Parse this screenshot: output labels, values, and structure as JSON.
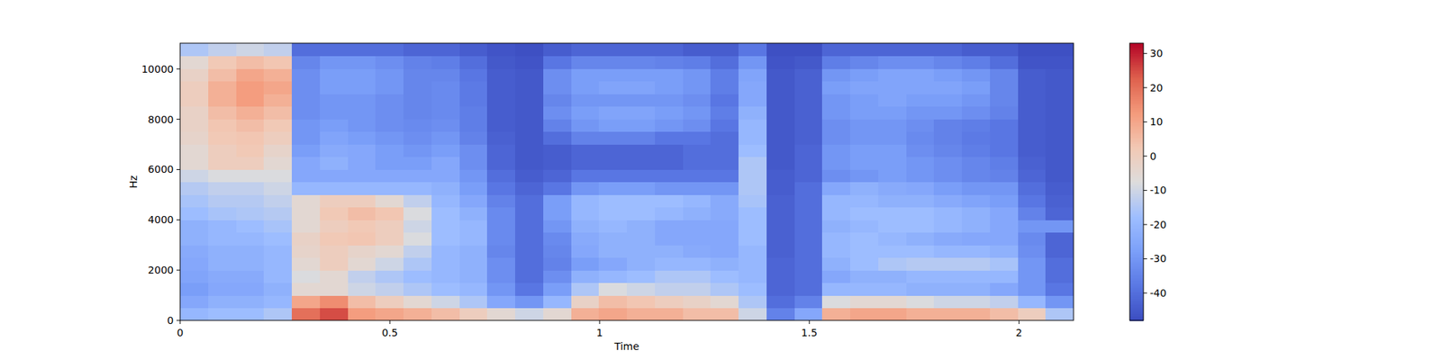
{
  "chart_data": {
    "type": "heatmap",
    "x_label": "Time",
    "y_label": "Hz",
    "xlim": [
      0,
      2.13
    ],
    "xticks": [
      0,
      0.5,
      1,
      1.5,
      2
    ],
    "ylim": [
      0,
      11025
    ],
    "yticks": [
      0,
      2000,
      4000,
      6000,
      8000,
      10000
    ],
    "colorbar_range": [
      -48,
      33
    ],
    "colorbar_ticks": [
      -40,
      -30,
      -20,
      -10,
      0,
      10,
      20,
      30
    ],
    "cells": [
      [
        -20,
        -18,
        -18,
        -15,
        20,
        25,
        12,
        10,
        8,
        5,
        0,
        -5,
        -10,
        -5,
        8,
        10,
        8,
        8,
        5,
        5,
        -10,
        -35,
        -25,
        8,
        10,
        10,
        8,
        8,
        8,
        5,
        0,
        -15
      ],
      [
        -25,
        -22,
        -22,
        -20,
        10,
        15,
        5,
        0,
        -5,
        -10,
        -15,
        -25,
        -30,
        -20,
        -2,
        5,
        3,
        0,
        -2,
        -5,
        -15,
        -40,
        -35,
        -8,
        -5,
        -5,
        -8,
        -10,
        -10,
        -12,
        -20,
        -30
      ],
      [
        -28,
        -25,
        -25,
        -22,
        -5,
        -5,
        -10,
        -12,
        -15,
        -18,
        -20,
        -30,
        -38,
        -28,
        -15,
        -8,
        -10,
        -12,
        -12,
        -15,
        -18,
        -42,
        -40,
        -20,
        -20,
        -20,
        -22,
        -22,
        -22,
        -25,
        -30,
        -38
      ],
      [
        -26,
        -24,
        -24,
        -20,
        -8,
        -5,
        -12,
        -15,
        -18,
        -20,
        -22,
        -32,
        -40,
        -32,
        -22,
        -20,
        -18,
        -15,
        -15,
        -18,
        -20,
        -42,
        -40,
        -25,
        -22,
        -22,
        -20,
        -20,
        -20,
        -20,
        -30,
        -40
      ],
      [
        -25,
        -22,
        -22,
        -20,
        -5,
        0,
        -5,
        -10,
        -15,
        -20,
        -22,
        -32,
        -40,
        -35,
        -28,
        -25,
        -22,
        -20,
        -20,
        -22,
        -20,
        -42,
        -40,
        -22,
        -18,
        -15,
        -14,
        -14,
        -14,
        -16,
        -30,
        -40
      ],
      [
        -24,
        -22,
        -22,
        -20,
        -3,
        0,
        -3,
        -5,
        -12,
        -20,
        -22,
        -34,
        -40,
        -34,
        -25,
        -22,
        -22,
        -22,
        -24,
        -25,
        -20,
        -43,
        -40,
        -20,
        -18,
        -18,
        -18,
        -20,
        -20,
        -22,
        -32,
        -42
      ],
      [
        -22,
        -20,
        -20,
        -18,
        -2,
        2,
        3,
        0,
        -8,
        -18,
        -20,
        -33,
        -40,
        -33,
        -24,
        -22,
        -22,
        -25,
        -25,
        -25,
        -18,
        -43,
        -40,
        -20,
        -18,
        -20,
        -22,
        -24,
        -25,
        -25,
        -33,
        -42
      ],
      [
        -22,
        -20,
        -18,
        -16,
        -5,
        0,
        2,
        0,
        -10,
        -18,
        -20,
        -33,
        -40,
        -30,
        -22,
        -20,
        -22,
        -25,
        -25,
        -25,
        -18,
        -43,
        -40,
        -22,
        -20,
        -18,
        -18,
        -20,
        -22,
        -25,
        -30,
        -30
      ],
      [
        -18,
        -16,
        -15,
        -14,
        -5,
        2,
        5,
        3,
        -8,
        -18,
        -22,
        -33,
        -40,
        -28,
        -20,
        -18,
        -18,
        -20,
        -22,
        -24,
        -18,
        -43,
        -40,
        -20,
        -18,
        -18,
        -18,
        -20,
        -22,
        -25,
        -35,
        -42
      ],
      [
        -16,
        -14,
        -14,
        -12,
        -5,
        0,
        0,
        -5,
        -12,
        -20,
        -25,
        -35,
        -40,
        -28,
        -20,
        -18,
        -18,
        -18,
        -20,
        -24,
        -16,
        -43,
        -40,
        -20,
        -20,
        -22,
        -22,
        -24,
        -26,
        -28,
        -38,
        -43
      ],
      [
        -14,
        -12,
        -12,
        -10,
        -20,
        -20,
        -20,
        -20,
        -20,
        -22,
        -28,
        -38,
        -42,
        -38,
        -30,
        -28,
        -28,
        -30,
        -30,
        -30,
        -15,
        -44,
        -40,
        -25,
        -22,
        -24,
        -25,
        -28,
        -30,
        -30,
        -40,
        -44
      ],
      [
        -10,
        -8,
        -8,
        -8,
        -25,
        -25,
        -25,
        -25,
        -25,
        -25,
        -30,
        -40,
        -44,
        -42,
        -38,
        -38,
        -38,
        -38,
        -38,
        -38,
        -15,
        -44,
        -42,
        -32,
        -30,
        -28,
        -30,
        -32,
        -34,
        -35,
        -42,
        -45
      ],
      [
        -5,
        0,
        0,
        -5,
        -25,
        -22,
        -25,
        -28,
        -28,
        -25,
        -32,
        -42,
        -45,
        -44,
        -42,
        -42,
        -42,
        -42,
        -40,
        -40,
        -15,
        -45,
        -42,
        -30,
        -28,
        -28,
        -30,
        -32,
        -34,
        -36,
        -43,
        -45
      ],
      [
        -5,
        0,
        2,
        -3,
        -28,
        -24,
        -25,
        -28,
        -30,
        -28,
        -32,
        -42,
        -45,
        -44,
        -42,
        -42,
        -42,
        -42,
        -40,
        -40,
        -18,
        -45,
        -42,
        -30,
        -28,
        -28,
        -32,
        -34,
        -36,
        -38,
        -44,
        -45
      ],
      [
        -3,
        2,
        3,
        0,
        -30,
        -26,
        -28,
        -30,
        -32,
        -30,
        -35,
        -43,
        -45,
        -40,
        -35,
        -35,
        -35,
        -38,
        -38,
        -40,
        -20,
        -45,
        -43,
        -32,
        -30,
        -30,
        -33,
        -35,
        -37,
        -38,
        -44,
        -45
      ],
      [
        -2,
        3,
        5,
        2,
        -30,
        -28,
        -30,
        -32,
        -33,
        -32,
        -36,
        -44,
        -45,
        -35,
        -30,
        -28,
        -28,
        -30,
        -32,
        -38,
        -20,
        -45,
        -43,
        -32,
        -30,
        -30,
        -32,
        -35,
        -36,
        -38,
        -44,
        -45
      ],
      [
        -2,
        5,
        8,
        5,
        -32,
        -30,
        -30,
        -32,
        -34,
        -33,
        -36,
        -44,
        -45,
        -32,
        -28,
        -26,
        -26,
        -28,
        -30,
        -36,
        -22,
        -45,
        -43,
        -30,
        -28,
        -28,
        -30,
        -30,
        -32,
        -35,
        -44,
        -45
      ],
      [
        0,
        8,
        12,
        8,
        -32,
        -30,
        -30,
        -32,
        -34,
        -33,
        -37,
        -44,
        -45,
        -34,
        -30,
        -30,
        -30,
        -30,
        -32,
        -38,
        -25,
        -45,
        -43,
        -30,
        -28,
        -26,
        -28,
        -28,
        -30,
        -34,
        -44,
        -45
      ],
      [
        0,
        8,
        12,
        10,
        -32,
        -28,
        -28,
        -30,
        -34,
        -33,
        -37,
        -44,
        -45,
        -32,
        -28,
        -26,
        -26,
        -28,
        -30,
        -36,
        -25,
        -45,
        -43,
        -28,
        -26,
        -26,
        -26,
        -26,
        -28,
        -34,
        -44,
        -45
      ],
      [
        -2,
        5,
        10,
        8,
        -32,
        -28,
        -28,
        -30,
        -34,
        -34,
        -38,
        -44,
        -45,
        -32,
        -28,
        -28,
        -28,
        -28,
        -30,
        -36,
        -26,
        -45,
        -43,
        -30,
        -28,
        -26,
        -26,
        -28,
        -30,
        -34,
        -44,
        -45
      ],
      [
        -5,
        2,
        5,
        3,
        -34,
        -30,
        -30,
        -32,
        -35,
        -36,
        -40,
        -45,
        -46,
        -38,
        -34,
        -34,
        -34,
        -35,
        -36,
        -40,
        -30,
        -46,
        -45,
        -36,
        -34,
        -32,
        -32,
        -34,
        -36,
        -40,
        -46,
        -46
      ],
      [
        -15,
        -12,
        -10,
        -12,
        -40,
        -40,
        -40,
        -40,
        -42,
        -42,
        -44,
        -46,
        -47,
        -44,
        -42,
        -42,
        -42,
        -42,
        -44,
        -44,
        -38,
        -47,
        -47,
        -42,
        -42,
        -42,
        -42,
        -42,
        -44,
        -44,
        -47,
        -47
      ]
    ]
  }
}
